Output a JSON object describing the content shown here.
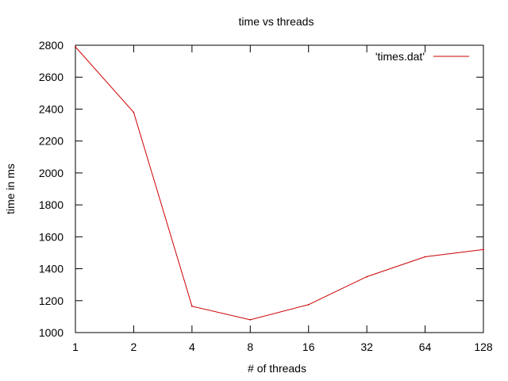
{
  "chart_data": {
    "type": "line",
    "title": "time vs threads",
    "xlabel": "# of threads",
    "ylabel": "time in ms",
    "x_scale": "log2",
    "x": [
      1,
      2,
      4,
      8,
      16,
      32,
      64,
      128
    ],
    "xticks": [
      "1",
      "2",
      "4",
      "8",
      "16",
      "32",
      "64",
      "128"
    ],
    "yticks": [
      "1000",
      "1200",
      "1400",
      "1600",
      "1800",
      "2000",
      "2200",
      "2400",
      "2600",
      "2800"
    ],
    "ylim": [
      1000,
      2800
    ],
    "grid": false,
    "legend_position": "top-right",
    "series": [
      {
        "name": "'times.dat'",
        "color": "#cc0000",
        "values": [
          2790,
          2380,
          1165,
          1080,
          1175,
          1350,
          1475,
          1520
        ]
      }
    ]
  }
}
